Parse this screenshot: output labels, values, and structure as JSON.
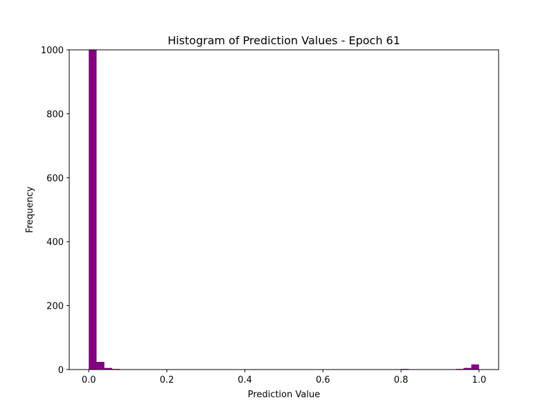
{
  "chart_data": {
    "type": "bar",
    "title": "Histogram of Prediction Values - Epoch 61",
    "xlabel": "Prediction Value",
    "ylabel": "Frequency",
    "xlim": [
      -0.05,
      1.05
    ],
    "ylim": [
      0,
      1000
    ],
    "xticks": [
      "0.0",
      "0.2",
      "0.4",
      "0.6",
      "0.8",
      "1.0"
    ],
    "yticks": [
      "0",
      "200",
      "400",
      "600",
      "800",
      "1000"
    ],
    "color": "#800080",
    "grid": false,
    "legend": "none",
    "bin_width": 0.02,
    "bins": [
      {
        "x0": 0.0,
        "count": 1000
      },
      {
        "x0": 0.02,
        "count": 24
      },
      {
        "x0": 0.04,
        "count": 5
      },
      {
        "x0": 0.06,
        "count": 2
      },
      {
        "x0": 0.8,
        "count": 2
      },
      {
        "x0": 0.94,
        "count": 2
      },
      {
        "x0": 0.96,
        "count": 5
      },
      {
        "x0": 0.98,
        "count": 16
      }
    ]
  }
}
